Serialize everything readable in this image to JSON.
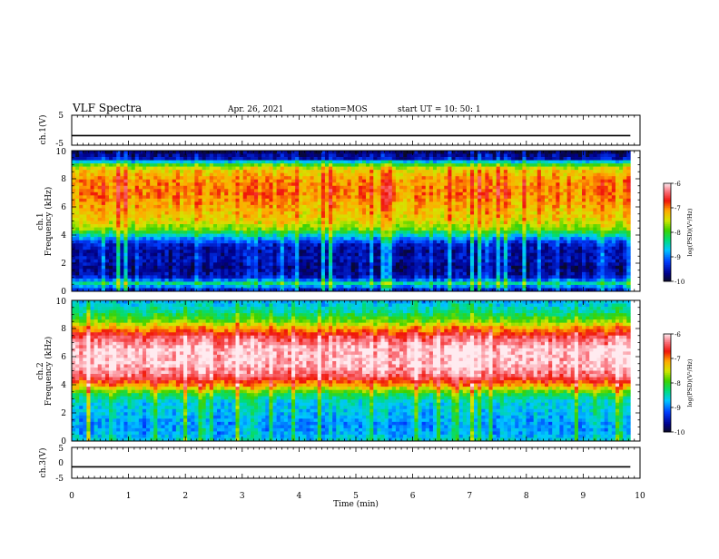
{
  "header": {
    "title": "VLF Spectra",
    "date": "Apr. 26, 2021",
    "station": "station=MOS",
    "start": "start  UT =    10: 50: 1"
  },
  "chart_data": [
    {
      "type": "line",
      "panel": "ch1-voltage",
      "ylabel": "ch.1(V)",
      "ylim": [
        -5,
        5
      ],
      "ytick_labels": [
        "5",
        "-5"
      ],
      "xlim": [
        0,
        10
      ],
      "series": [
        {
          "values_constant": -1.8
        }
      ]
    },
    {
      "type": "heatmap",
      "panel": "ch1-spectrogram",
      "ylabel": "ch.1",
      "ylabel2": "Frequency (kHz)",
      "xlim": [
        0,
        10
      ],
      "ylim": [
        0,
        10
      ],
      "ytick_labels": [
        "0",
        "2",
        "4",
        "6",
        "8",
        "10"
      ],
      "data_end_min": 9.83,
      "colorbar": {
        "range": [
          -10,
          -6
        ],
        "tick_labels": [
          "-6",
          "-7",
          "-8",
          "-9",
          "-10"
        ],
        "label": "log(PSD)(V²/Hz)"
      },
      "band_profile_khz": [
        [
          0.0,
          -9.6
        ],
        [
          0.3,
          -9.0
        ],
        [
          0.6,
          -8.3
        ],
        [
          0.9,
          -9.4
        ],
        [
          1.3,
          -9.6
        ],
        [
          1.7,
          -9.7
        ],
        [
          2.3,
          -9.5
        ],
        [
          2.8,
          -9.6
        ],
        [
          3.4,
          -9.4
        ],
        [
          3.9,
          -8.7
        ],
        [
          4.4,
          -7.8
        ],
        [
          5.0,
          -7.4
        ],
        [
          6.0,
          -7.2
        ],
        [
          7.0,
          -7.0
        ],
        [
          8.0,
          -7.1
        ],
        [
          8.7,
          -7.4
        ],
        [
          9.1,
          -8.2
        ],
        [
          9.4,
          -9.5
        ],
        [
          10.0,
          -9.9
        ]
      ],
      "scale": {
        "base": -10,
        "span": 4
      }
    },
    {
      "type": "heatmap",
      "panel": "ch2-spectrogram",
      "ylabel": "ch.2",
      "ylabel2": "Frequency (kHz)",
      "xlim": [
        0,
        10
      ],
      "ylim": [
        0,
        10
      ],
      "ytick_labels": [
        "0",
        "2",
        "4",
        "6",
        "8",
        "10"
      ],
      "data_end_min": 9.83,
      "colorbar": {
        "range": [
          -10,
          -6
        ],
        "tick_labels": [
          "-6",
          "-7",
          "-8",
          "-9",
          "-10"
        ],
        "label": "log(PSD)(V²/Hz)"
      },
      "band_profile_khz": [
        [
          0.0,
          -8.6
        ],
        [
          0.5,
          -8.8
        ],
        [
          1.2,
          -8.9
        ],
        [
          2.0,
          -8.7
        ],
        [
          2.8,
          -8.6
        ],
        [
          3.4,
          -8.1
        ],
        [
          3.9,
          -7.2
        ],
        [
          4.6,
          -6.4
        ],
        [
          5.5,
          -6.1
        ],
        [
          6.5,
          -6.1
        ],
        [
          7.4,
          -6.5
        ],
        [
          8.0,
          -7.1
        ],
        [
          8.5,
          -7.8
        ],
        [
          9.2,
          -8.4
        ],
        [
          10.0,
          -8.8
        ]
      ],
      "scale": {
        "base": -10,
        "span": 4
      }
    },
    {
      "type": "line",
      "panel": "ch3-voltage",
      "ylabel": "ch.3(V)",
      "ylim": [
        -5,
        5
      ],
      "ytick_labels": [
        "5",
        "0",
        "-5"
      ],
      "xlim": [
        0,
        10
      ],
      "xlabel": "Time (min)",
      "xtick_labels": [
        "0",
        "1",
        "2",
        "3",
        "4",
        "5",
        "6",
        "7",
        "8",
        "9",
        "10"
      ],
      "series": [
        {
          "values_constant": -1.3
        }
      ]
    }
  ]
}
